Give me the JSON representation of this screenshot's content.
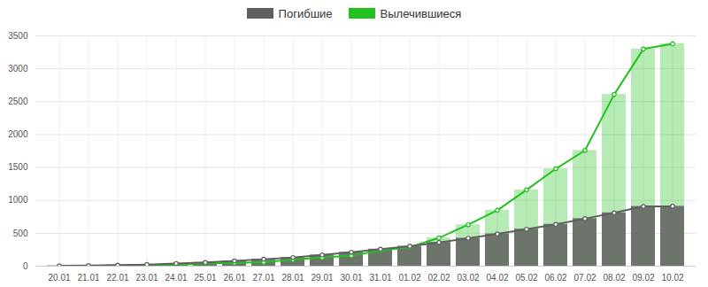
{
  "chart_data": {
    "type": "bar",
    "categories": [
      "20.01",
      "21.01",
      "22.01",
      "23.01",
      "24.01",
      "25.01",
      "26.01",
      "27.01",
      "28.01",
      "29.01",
      "30.01",
      "31.01",
      "01.02",
      "02.02",
      "03.02",
      "04.02",
      "05.02",
      "06.02",
      "07.02",
      "08.02",
      "09.02",
      "10.02"
    ],
    "series": [
      {
        "name": "Погибшие",
        "color": "#5f5f5f",
        "marker": "circle",
        "line_style": "solid",
        "values": [
          6,
          9,
          17,
          25,
          41,
          56,
          80,
          106,
          132,
          170,
          213,
          259,
          304,
          361,
          425,
          490,
          563,
          636,
          722,
          811,
          908,
          910
        ]
      },
      {
        "name": "Вылечившиеся",
        "color": "#22c21e",
        "marker": "circle",
        "line_style": "solid",
        "values": [
          0,
          0,
          0,
          10,
          20,
          40,
          50,
          60,
          100,
          130,
          160,
          240,
          290,
          430,
          630,
          850,
          1160,
          1480,
          1760,
          2610,
          3300,
          3380
        ]
      }
    ],
    "ylim": [
      0,
      3500
    ],
    "yticks": [
      0,
      500,
      1000,
      1500,
      2000,
      2500,
      3000,
      3500
    ],
    "grid": true,
    "legend": "top"
  }
}
